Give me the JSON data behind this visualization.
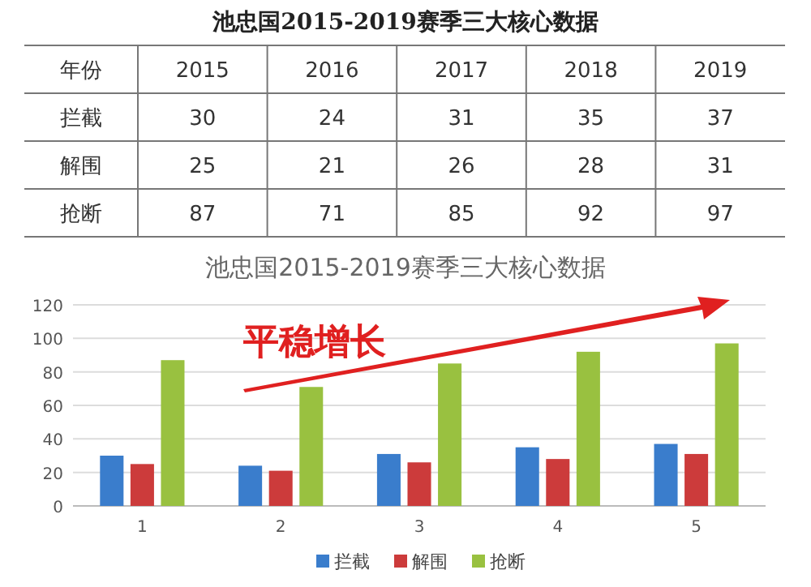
{
  "chart_data": {
    "type": "bar",
    "title": "池忠国2015-2019赛季三大核心数据",
    "subtitle": "池忠国2015-2019赛季三大核心数据",
    "annotations": [
      "年份",
      "2015",
      "2016",
      "2017",
      "2018",
      "2019",
      "平稳增长"
    ],
    "categories": [
      "1",
      "2",
      "3",
      "4",
      "5"
    ],
    "series": [
      {
        "name": "拦截",
        "color": "#3a7dcc",
        "values": [
          30,
          24,
          31,
          35,
          37
        ]
      },
      {
        "name": "解围",
        "color": "#cc3b3b",
        "values": [
          25,
          21,
          26,
          28,
          31
        ]
      },
      {
        "name": "抢断",
        "color": "#99c140",
        "values": [
          87,
          71,
          85,
          92,
          97
        ]
      }
    ],
    "ylim": [
      0,
      120
    ],
    "yticks": [
      0,
      20,
      40,
      60,
      80,
      100,
      120
    ],
    "grid": "y",
    "legend": "bottom",
    "data_labels": true
  }
}
